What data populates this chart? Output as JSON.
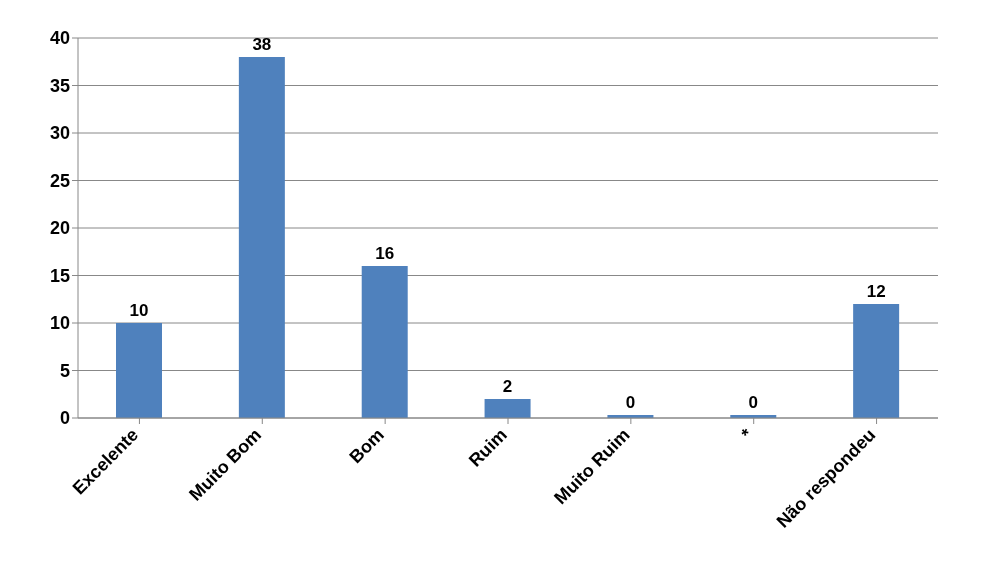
{
  "chart_data": {
    "type": "bar",
    "categories": [
      "Excelente",
      "Muito Bom",
      "Bom",
      "Ruim",
      "Muito Ruim",
      "*",
      "Não respondeu"
    ],
    "values": [
      10,
      38,
      16,
      2,
      0,
      0,
      12
    ],
    "color": "#4f81bd",
    "ylim": [
      0,
      40
    ],
    "yticks": [
      0,
      5,
      10,
      15,
      20,
      25,
      30,
      35,
      40
    ],
    "grid": "y",
    "data_labels": true,
    "legend": false
  }
}
